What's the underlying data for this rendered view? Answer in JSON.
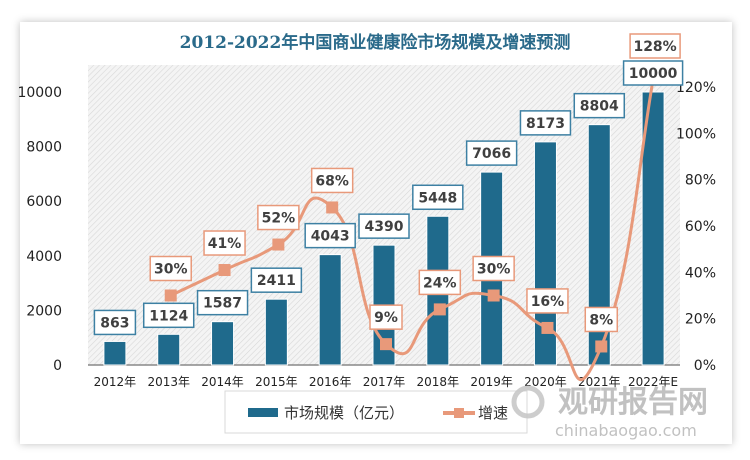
{
  "chart_data": {
    "type": "bar",
    "title": "2012-2022年中国商业健康险市场规模及增速预测",
    "categories": [
      "2012年",
      "2013年",
      "2014年",
      "2015年",
      "2016年",
      "2017年",
      "2018年",
      "2019年",
      "2020年",
      "2021年",
      "2022年E"
    ],
    "series": [
      {
        "name": "市场规模（亿元）",
        "type": "bar",
        "axis": "left",
        "color": "#1f6a8c",
        "values": [
          863,
          1124,
          1587,
          2411,
          4043,
          4390,
          5448,
          7066,
          8173,
          8804,
          10000
        ],
        "labels": [
          "863",
          "1124",
          "1587",
          "2411",
          "4043",
          "4390",
          "5448",
          "7066",
          "8173",
          "8804",
          "10000"
        ]
      },
      {
        "name": "增速",
        "type": "line",
        "axis": "right",
        "color": "#e8997a",
        "smooth": true,
        "values": [
          null,
          30,
          41,
          52,
          68,
          9,
          24,
          30,
          16,
          8,
          128
        ],
        "labels": [
          "",
          "30%",
          "41%",
          "52%",
          "68%",
          "9%",
          "24%",
          "30%",
          "16%",
          "8%",
          "128%"
        ]
      }
    ],
    "y_left": {
      "ylim": [
        0,
        10000
      ],
      "ticks": [
        "0",
        "2000",
        "4000",
        "6000",
        "8000",
        "10000"
      ]
    },
    "y_right": {
      "ylim": [
        0,
        120
      ],
      "ticks": [
        "0%",
        "20%",
        "40%",
        "60%",
        "80%",
        "100%",
        "120%"
      ]
    },
    "grid": false,
    "legend": "bottom",
    "title_color": "#2a6a8a"
  },
  "watermark": {
    "name": "观研报告网",
    "url": "chinabaogao.com"
  }
}
